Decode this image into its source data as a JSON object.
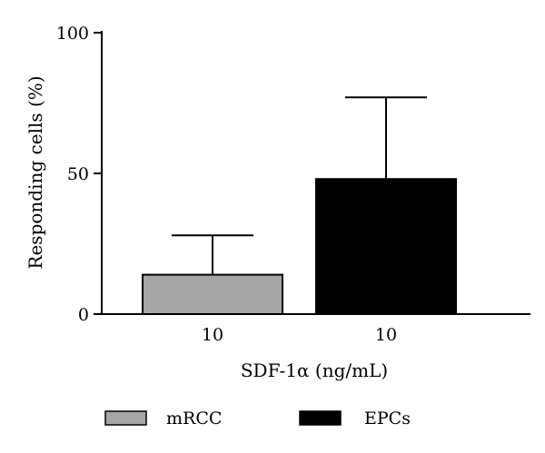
{
  "chart_data": {
    "type": "bar",
    "categories": [
      "10",
      "10"
    ],
    "series": [
      {
        "name": "mRCC",
        "value": 14,
        "error": 14,
        "color": "#a6a6a6"
      },
      {
        "name": "EPCs",
        "value": 48,
        "error": 29,
        "color": "#000000"
      }
    ],
    "xlabel": "SDF-1α (ng/mL)",
    "ylabel": "Responding cells (%)",
    "ylim": [
      0,
      100
    ],
    "yticks": [
      0,
      50,
      100
    ],
    "grid": false,
    "legend_position": "bottom"
  }
}
